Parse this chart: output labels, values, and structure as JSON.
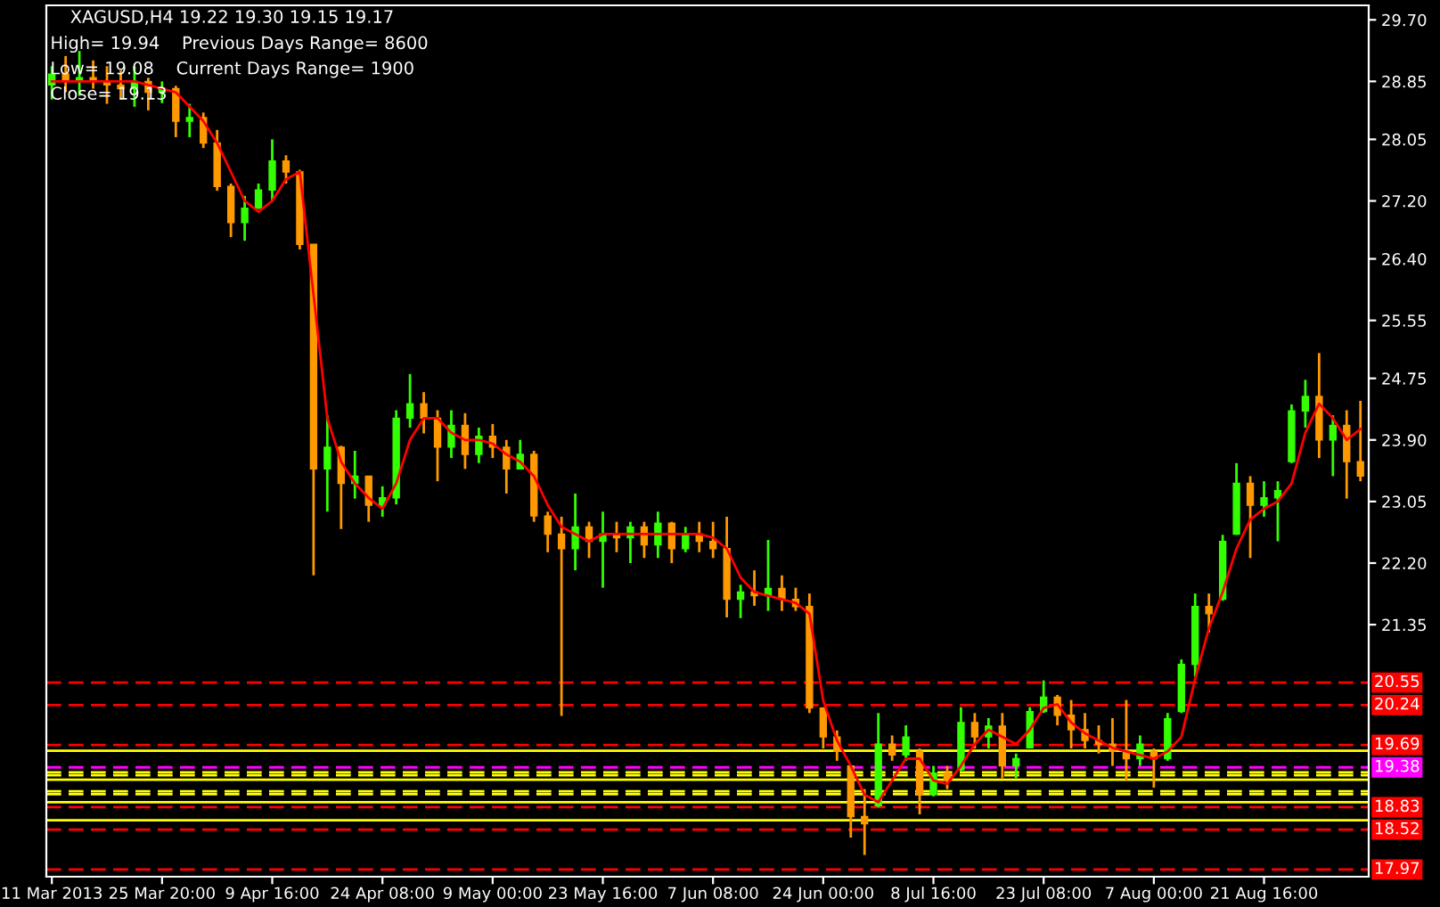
{
  "chart_data": {
    "type": "candlestick",
    "title": "XAGUSD,H4 19.22 19.30 19.15 19.17",
    "annotations": [
      "High= 19.94    Previous Days Range= 8600",
      "Low= 19.08    Current Days Range= 1900",
      "Close= 19.13"
    ],
    "categories": [
      "11 Mar 2013",
      null,
      null,
      null,
      null,
      null,
      null,
      null,
      "25 Mar 20:00",
      null,
      null,
      null,
      null,
      null,
      null,
      null,
      "9 Apr 16:00",
      null,
      null,
      null,
      null,
      null,
      null,
      null,
      "24 Apr 08:00",
      null,
      null,
      null,
      null,
      null,
      null,
      null,
      "9 May 00:00",
      null,
      null,
      null,
      null,
      null,
      null,
      null,
      "23 May 16:00",
      null,
      null,
      null,
      null,
      null,
      null,
      null,
      "7 Jun 08:00",
      null,
      null,
      null,
      null,
      null,
      null,
      null,
      "24 Jun 00:00",
      null,
      null,
      null,
      null,
      null,
      null,
      null,
      "8 Jul 16:00",
      null,
      null,
      null,
      null,
      null,
      null,
      null,
      "23 Jul 08:00",
      null,
      null,
      null,
      null,
      null,
      null,
      null,
      "7 Aug 00:00",
      null,
      null,
      null,
      null,
      null,
      null,
      null,
      "21 Aug 16:00",
      null,
      null,
      null,
      null,
      null,
      null,
      null
    ],
    "ohlc": [
      [
        28.8,
        29.06,
        28.6,
        28.95
      ],
      [
        28.95,
        29.2,
        28.7,
        28.85
      ],
      [
        28.85,
        29.27,
        28.65,
        28.9
      ],
      [
        28.9,
        29.14,
        28.75,
        28.85
      ],
      [
        28.85,
        29.06,
        28.54,
        28.8
      ],
      [
        28.8,
        29.0,
        28.6,
        28.75
      ],
      [
        28.75,
        29.06,
        28.5,
        28.85
      ],
      [
        28.85,
        28.9,
        28.45,
        28.7
      ],
      [
        28.7,
        28.85,
        28.55,
        28.75
      ],
      [
        28.75,
        28.79,
        28.08,
        28.3
      ],
      [
        28.3,
        28.54,
        28.08,
        28.35
      ],
      [
        28.35,
        28.42,
        27.93,
        28.0
      ],
      [
        28.0,
        28.18,
        27.34,
        27.4
      ],
      [
        27.4,
        27.44,
        26.7,
        26.9
      ],
      [
        26.9,
        27.27,
        26.65,
        27.1
      ],
      [
        27.1,
        27.44,
        27.09,
        27.35
      ],
      [
        27.35,
        28.05,
        27.19,
        27.75
      ],
      [
        27.75,
        27.83,
        27.44,
        27.6
      ],
      [
        27.6,
        27.63,
        26.53,
        26.6
      ],
      [
        26.6,
        26.6,
        22.03,
        23.5
      ],
      [
        23.5,
        24.24,
        22.91,
        23.8
      ],
      [
        23.8,
        23.82,
        22.67,
        23.3
      ],
      [
        23.3,
        23.75,
        23.09,
        23.4
      ],
      [
        23.4,
        23.4,
        22.77,
        23.0
      ],
      [
        23.0,
        23.26,
        22.84,
        23.1
      ],
      [
        23.1,
        24.31,
        23.01,
        24.2
      ],
      [
        24.2,
        24.81,
        24.07,
        24.4
      ],
      [
        24.4,
        24.56,
        23.99,
        24.2
      ],
      [
        24.2,
        24.31,
        23.33,
        23.8
      ],
      [
        23.8,
        24.31,
        23.65,
        24.1
      ],
      [
        24.1,
        24.27,
        23.5,
        23.7
      ],
      [
        23.7,
        24.07,
        23.58,
        23.95
      ],
      [
        23.95,
        24.12,
        23.65,
        23.8
      ],
      [
        23.8,
        23.9,
        23.16,
        23.5
      ],
      [
        23.5,
        23.9,
        23.5,
        23.7
      ],
      [
        23.7,
        23.75,
        22.77,
        22.85
      ],
      [
        22.85,
        22.91,
        22.35,
        22.6
      ],
      [
        22.6,
        22.84,
        20.09,
        22.4
      ],
      [
        22.4,
        23.16,
        22.1,
        22.7
      ],
      [
        22.7,
        22.77,
        22.27,
        22.5
      ],
      [
        22.5,
        22.91,
        21.86,
        22.6
      ],
      [
        22.6,
        22.77,
        22.35,
        22.55
      ],
      [
        22.55,
        22.77,
        22.2,
        22.7
      ],
      [
        22.7,
        22.77,
        22.27,
        22.45
      ],
      [
        22.45,
        22.91,
        22.27,
        22.75
      ],
      [
        22.75,
        22.77,
        22.2,
        22.4
      ],
      [
        22.4,
        22.7,
        22.35,
        22.6
      ],
      [
        22.6,
        22.77,
        22.35,
        22.5
      ],
      [
        22.5,
        22.77,
        22.27,
        22.4
      ],
      [
        22.4,
        22.84,
        21.45,
        21.7
      ],
      [
        21.7,
        21.9,
        21.44,
        21.8
      ],
      [
        21.8,
        22.1,
        21.61,
        21.75
      ],
      [
        21.75,
        22.52,
        21.54,
        21.85
      ],
      [
        21.85,
        22.03,
        21.54,
        21.7
      ],
      [
        21.7,
        21.86,
        21.54,
        21.6
      ],
      [
        21.6,
        21.78,
        20.13,
        20.2
      ],
      [
        20.2,
        20.21,
        19.64,
        19.8
      ],
      [
        19.8,
        19.89,
        19.47,
        19.6
      ],
      [
        19.4,
        19.4,
        18.41,
        18.7
      ],
      [
        18.7,
        19.08,
        18.17,
        18.6
      ],
      [
        18.85,
        20.13,
        18.83,
        19.7
      ],
      [
        19.7,
        19.82,
        19.47,
        19.55
      ],
      [
        19.55,
        19.96,
        19.47,
        19.8
      ],
      [
        19.6,
        19.64,
        18.73,
        19.0
      ],
      [
        19.0,
        19.4,
        18.98,
        19.3
      ],
      [
        19.3,
        19.4,
        19.08,
        19.2
      ],
      [
        19.35,
        20.21,
        19.33,
        20.0
      ],
      [
        20.0,
        20.13,
        19.64,
        19.8
      ],
      [
        19.8,
        20.06,
        19.64,
        19.95
      ],
      [
        19.95,
        20.13,
        19.23,
        19.4
      ],
      [
        19.4,
        19.57,
        19.23,
        19.5
      ],
      [
        19.65,
        20.21,
        19.64,
        20.15
      ],
      [
        20.15,
        20.58,
        20.13,
        20.35
      ],
      [
        20.35,
        20.38,
        19.96,
        20.1
      ],
      [
        20.1,
        20.31,
        19.64,
        19.9
      ],
      [
        19.9,
        20.13,
        19.64,
        19.75
      ],
      [
        19.75,
        19.96,
        19.57,
        19.7
      ],
      [
        19.7,
        20.06,
        19.4,
        19.6
      ],
      [
        19.6,
        20.31,
        19.2,
        19.5
      ],
      [
        19.5,
        19.82,
        19.4,
        19.7
      ],
      [
        19.6,
        19.64,
        19.1,
        19.5
      ],
      [
        19.5,
        20.13,
        19.47,
        20.05
      ],
      [
        20.15,
        20.87,
        20.13,
        20.8
      ],
      [
        20.8,
        21.78,
        20.63,
        21.6
      ],
      [
        21.6,
        21.78,
        21.24,
        21.5
      ],
      [
        21.7,
        22.59,
        21.68,
        22.5
      ],
      [
        22.6,
        23.58,
        22.59,
        23.3
      ],
      [
        23.3,
        23.4,
        22.27,
        23.0
      ],
      [
        23.0,
        23.33,
        22.84,
        23.1
      ],
      [
        23.1,
        23.33,
        22.5,
        23.2
      ],
      [
        23.6,
        24.39,
        23.58,
        24.3
      ],
      [
        24.3,
        24.73,
        24.07,
        24.5
      ],
      [
        24.5,
        25.1,
        23.65,
        23.9
      ],
      [
        23.9,
        24.24,
        23.4,
        24.1
      ],
      [
        24.1,
        24.31,
        23.09,
        23.6
      ],
      [
        23.6,
        24.44,
        23.33,
        23.4
      ]
    ],
    "colors": [
      "#33ff00",
      "#ff9900",
      "#33ff00",
      "#ff9900",
      "#ff9900",
      "#ff9900",
      "#33ff00",
      "#ff9900",
      "#33ff00",
      "#ff9900",
      "#33ff00",
      "#ff9900",
      "#ff9900",
      "#ff9900",
      "#33ff00",
      "#33ff00",
      "#33ff00",
      "#ff9900",
      "#ff9900",
      "#ff9900",
      "#33ff00",
      "#ff9900",
      "#33ff00",
      "#ff9900",
      "#33ff00",
      "#33ff00",
      "#33ff00",
      "#ff9900",
      "#ff9900",
      "#33ff00",
      "#ff9900",
      "#33ff00",
      "#ff9900",
      "#ff9900",
      "#33ff00",
      "#ff9900",
      "#ff9900",
      "#ff9900",
      "#33ff00",
      "#ff9900",
      "#33ff00",
      "#ff9900",
      "#33ff00",
      "#ff9900",
      "#33ff00",
      "#ff9900",
      "#33ff00",
      "#ff9900",
      "#ff9900",
      "#ff9900",
      "#33ff00",
      "#ff9900",
      "#33ff00",
      "#ff9900",
      "#ff9900",
      "#ff9900",
      "#ff9900",
      "#ff9900",
      "#ff9900",
      "#ff9900",
      "#33ff00",
      "#ff9900",
      "#33ff00",
      "#ff9900",
      "#33ff00",
      "#ff9900",
      "#33ff00",
      "#ff9900",
      "#33ff00",
      "#ff9900",
      "#33ff00",
      "#33ff00",
      "#33ff00",
      "#ff9900",
      "#ff9900",
      "#ff9900",
      "#ff9900",
      "#ff9900",
      "#ff9900",
      "#33ff00",
      "#ff9900",
      "#33ff00",
      "#33ff00",
      "#33ff00",
      "#ff9900",
      "#33ff00",
      "#33ff00",
      "#ff9900",
      "#33ff00",
      "#33ff00",
      "#33ff00",
      "#33ff00",
      "#ff9900",
      "#33ff00",
      "#ff9900",
      "#ff9900"
    ],
    "series": [
      {
        "type": "line",
        "color": "#ff0000",
        "values": [
          28.85,
          28.85,
          28.85,
          28.85,
          28.85,
          28.85,
          28.85,
          28.8,
          28.75,
          28.7,
          28.5,
          28.3,
          28.0,
          27.6,
          27.2,
          27.05,
          27.2,
          27.5,
          27.6,
          25.9,
          24.2,
          23.6,
          23.3,
          23.1,
          22.95,
          23.3,
          23.9,
          24.2,
          24.2,
          24.0,
          23.9,
          23.9,
          23.85,
          23.7,
          23.6,
          23.4,
          23.0,
          22.7,
          22.6,
          22.5,
          22.6,
          22.6,
          22.6,
          22.6,
          22.6,
          22.6,
          22.6,
          22.6,
          22.55,
          22.4,
          22.0,
          21.8,
          21.75,
          21.7,
          21.65,
          21.5,
          20.3,
          19.75,
          19.4,
          19.0,
          18.9,
          19.2,
          19.5,
          19.5,
          19.2,
          19.15,
          19.4,
          19.7,
          19.9,
          19.8,
          19.7,
          19.9,
          20.2,
          20.25,
          20.0,
          19.85,
          19.75,
          19.65,
          19.6,
          19.55,
          19.5,
          19.6,
          19.8,
          20.6,
          21.3,
          21.8,
          22.4,
          22.8,
          22.95,
          23.05,
          23.3,
          24.0,
          24.4,
          24.2,
          23.9,
          24.05
        ]
      }
    ],
    "ylim": [
      17.87,
      29.9
    ],
    "yticks": [
      21.35,
      {
        "value": 22.2,
        "label": "22.20"
      },
      23.05,
      {
        "value": 23.9,
        "label": "23.90"
      },
      24.75,
      25.55,
      {
        "value": 26.4,
        "label": "26.40"
      },
      {
        "value": 27.2,
        "label": "27.20"
      },
      28.05,
      28.85,
      {
        "value": 29.7,
        "label": "29.70"
      }
    ],
    "ref_lines": [
      {
        "axis": "y",
        "value": 20.55,
        "label": "20.55",
        "color": "#ff0000",
        "line_style": "dashed"
      },
      {
        "axis": "y",
        "value": 20.24,
        "label": "20.24",
        "color": "#ff0000",
        "line_style": "dashed"
      },
      {
        "axis": "y",
        "value": 19.69,
        "label": "19.69",
        "color": "#ff0000",
        "line_style": "dashed"
      },
      {
        "axis": "y",
        "value": 19.61,
        "label": null,
        "color": "#ffff00",
        "line_style": "solid"
      },
      {
        "axis": "y",
        "value": 19.38,
        "label": "19.38",
        "color": "#ff00ff",
        "line_style": "dashed"
      },
      {
        "axis": "y",
        "value": 19.31,
        "label": null,
        "color": "#ffff00",
        "line_style": "dashed"
      },
      {
        "axis": "y",
        "value": 19.27,
        "label": null,
        "color": "#ffff00",
        "line_style": "dashed"
      },
      {
        "axis": "y",
        "value": 19.21,
        "label": null,
        "color": "#ffff00",
        "line_style": "solid"
      },
      {
        "axis": "y",
        "value": 19.05,
        "label": null,
        "color": "#ffff00",
        "line_style": "dashed"
      },
      {
        "axis": "y",
        "value": 19.01,
        "label": null,
        "color": "#ffff00",
        "line_style": "dashed"
      },
      {
        "axis": "y",
        "value": 18.9,
        "label": null,
        "color": "#ffff00",
        "line_style": "solid"
      },
      {
        "axis": "y",
        "value": 18.83,
        "label": "18.83",
        "color": "#ff0000",
        "line_style": "dashed"
      },
      {
        "axis": "y",
        "value": 18.65,
        "label": null,
        "color": "#ffff00",
        "line_style": "solid"
      },
      {
        "axis": "y",
        "value": 18.52,
        "label": "18.52",
        "color": "#ff0000",
        "line_style": "dashed"
      },
      {
        "axis": "y",
        "value": 17.97,
        "label": "17.97",
        "color": "#ff0000",
        "line_style": "dashed"
      }
    ],
    "grid": false,
    "legend": false
  }
}
